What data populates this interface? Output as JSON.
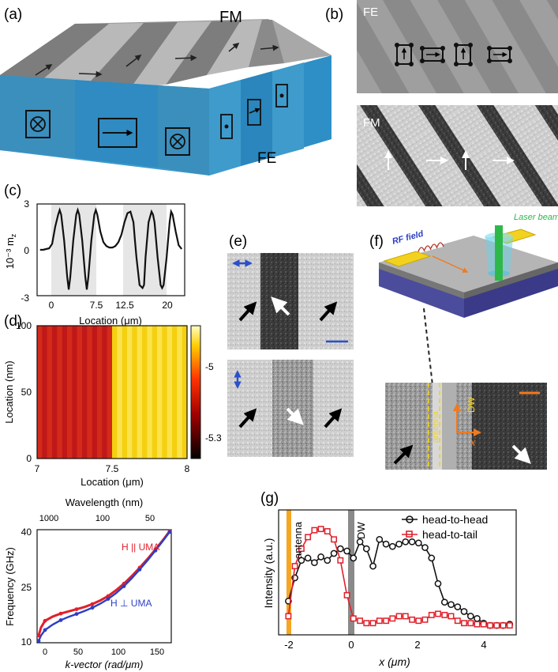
{
  "panels": {
    "a": {
      "letter": "(a)",
      "fm": "FM",
      "fe": "FE"
    },
    "b": {
      "letter": "(b)",
      "fe": "FE",
      "fm": "FM"
    },
    "c": {
      "letter": "(c)",
      "ylabel": "10⁻³ m",
      "ylabel_sub": "z",
      "xlabel": "Location (μm)",
      "yticks": [
        "3",
        "0",
        "-3"
      ],
      "xticks": [
        "0",
        "7.5",
        "12.5",
        "20"
      ]
    },
    "d": {
      "letter": "(d)",
      "ylabel": "Location (nm)",
      "xlabel": "Location (μm)",
      "yticks": [
        "100",
        "50",
        "0"
      ],
      "xticks": [
        "7",
        "7.5",
        "8"
      ],
      "cbar_ticks": [
        "-5",
        "-5.3"
      ]
    },
    "dispersion": {
      "top_label": "Wavelength (nm)",
      "top_ticks": [
        "1000",
        "100",
        "50"
      ],
      "ylabel": "Frequency (GHz)",
      "yticks": [
        "40",
        "25",
        "10"
      ],
      "xlabel": "k-vector (rad/μm)",
      "xticks": [
        "0",
        "50",
        "100",
        "150"
      ],
      "par_label": "H || UMA",
      "perp_label": "H ⊥ UMA",
      "par_color": "#e0202a",
      "perp_color": "#2a3fc4"
    },
    "e": {
      "letter": "(e)"
    },
    "f": {
      "letter": "(f)",
      "rf": "RF field",
      "laser": "Laser beam",
      "x": "x",
      "dw": "DW",
      "antenna": "antenna"
    },
    "g": {
      "letter": "(g)",
      "ylabel": "Intensity (a.u.)",
      "xlabel": "x (μm)",
      "xticks": [
        "-2",
        "0",
        "2",
        "4"
      ],
      "antenna": "antenna",
      "dw": "DW",
      "legend": [
        "head-to-head",
        "head-to-tail"
      ]
    }
  },
  "chart_data": [
    {
      "type": "line",
      "panel": "c",
      "xlabel": "Location (μm)",
      "ylabel": "10⁻³ m_z",
      "xlim": [
        -2.5,
        22
      ],
      "ylim": [
        -3,
        3
      ],
      "x": [
        -2.0,
        -1.5,
        -1.0,
        -0.5,
        0.0,
        0.5,
        1.0,
        1.25,
        1.5,
        2.0,
        2.5,
        2.75,
        3.0,
        3.5,
        4.0,
        4.25,
        4.5,
        5.0,
        5.5,
        5.75,
        6.0,
        6.5,
        7.0,
        7.25,
        7.5,
        8.0,
        8.5,
        9.0,
        9.5,
        10.0,
        10.5,
        11.0,
        11.5,
        12.0,
        12.5,
        13.0,
        13.5,
        13.75,
        14.0,
        14.5,
        15.0,
        15.25,
        15.5,
        16.0,
        16.5,
        16.75,
        17.0,
        17.5,
        18.0,
        18.25,
        18.5,
        19.0,
        19.5,
        19.75,
        20.0,
        20.5,
        21.0,
        21.5
      ],
      "series": [
        {
          "values": [
            0.0,
            0.0,
            0.05,
            0.1,
            0.4,
            1.5,
            2.3,
            2.6,
            2.3,
            0.6,
            -1.8,
            -2.6,
            -1.8,
            0.6,
            2.3,
            2.6,
            2.3,
            0.6,
            -1.8,
            -2.6,
            -1.8,
            0.6,
            2.3,
            2.6,
            2.3,
            1.2,
            0.5,
            0.25,
            0.15,
            0.15,
            0.25,
            0.5,
            1.0,
            1.8,
            2.4,
            2.5,
            1.8,
            0.6,
            -0.5,
            -2.3,
            -2.5,
            -2.3,
            -0.5,
            1.8,
            2.5,
            2.3,
            1.8,
            -0.5,
            -2.3,
            -2.5,
            -2.3,
            -0.5,
            1.8,
            2.5,
            2.3,
            1.2,
            0.3,
            0.05
          ]
        }
      ]
    },
    {
      "type": "heatmap",
      "panel": "d",
      "xlabel": "Location (μm)",
      "ylabel": "Location (nm)",
      "xlim": [
        7,
        8
      ],
      "ylim": [
        0,
        100
      ],
      "colorbar_ticks": [
        -5,
        -5.3
      ],
      "colormap": "hot"
    },
    {
      "type": "line",
      "panel": "dispersion",
      "xlabel": "k-vector (rad/μm)",
      "ylabel": "Frequency (GHz)",
      "xlim": [
        0,
        170
      ],
      "ylim": [
        10,
        41
      ],
      "x": [
        2,
        5,
        10,
        20,
        30,
        40,
        50,
        60,
        70,
        80,
        90,
        100,
        110,
        120,
        130,
        140,
        150,
        160,
        168
      ],
      "series": [
        {
          "name": "H || UMA",
          "color": "#e0202a",
          "values": [
            12.0,
            14.2,
            16.0,
            17.2,
            18.0,
            18.6,
            19.2,
            19.8,
            20.6,
            21.6,
            22.8,
            24.4,
            26.2,
            28.3,
            30.6,
            33.0,
            35.6,
            38.3,
            40.6
          ]
        },
        {
          "name": "H ⊥ UMA",
          "color": "#2a3fc4",
          "values": [
            10.5,
            12.0,
            13.5,
            15.0,
            16.2,
            17.1,
            17.9,
            18.7,
            19.6,
            20.7,
            22.0,
            23.6,
            25.5,
            27.7,
            30.1,
            32.6,
            35.3,
            38.1,
            40.4
          ]
        }
      ]
    },
    {
      "type": "line",
      "panel": "g",
      "xlabel": "x (μm)",
      "ylabel": "Intensity (a.u.)",
      "xlim": [
        -2.3,
        5.0
      ],
      "ylim": [
        0,
        1
      ],
      "legend": "top-right",
      "series": [
        {
          "name": "head-to-head",
          "color": "#111111",
          "x": [
            -2.0,
            -1.8,
            -1.6,
            -1.4,
            -1.2,
            -1.0,
            -0.8,
            -0.6,
            -0.4,
            -0.2,
            0.0,
            0.2,
            0.4,
            0.6,
            0.8,
            1.0,
            1.2,
            1.4,
            1.6,
            1.8,
            2.0,
            2.2,
            2.4,
            2.6,
            2.8,
            3.0,
            3.2,
            3.4,
            3.6,
            3.8,
            4.0,
            4.2,
            4.4,
            4.6,
            4.8
          ],
          "values": [
            0.25,
            0.45,
            0.6,
            0.62,
            0.58,
            0.63,
            0.6,
            0.66,
            0.7,
            0.68,
            0.62,
            0.76,
            0.7,
            0.55,
            0.78,
            0.74,
            0.72,
            0.74,
            0.76,
            0.76,
            0.75,
            0.71,
            0.62,
            0.4,
            0.24,
            0.22,
            0.2,
            0.16,
            0.12,
            0.1,
            0.06,
            0.04,
            0.04,
            0.04,
            0.05
          ]
        },
        {
          "name": "head-to-tail",
          "color": "#e0202a",
          "x": [
            -2.0,
            -1.8,
            -1.6,
            -1.4,
            -1.2,
            -1.0,
            -0.8,
            -0.6,
            -0.4,
            -0.2,
            0.0,
            0.2,
            0.4,
            0.6,
            0.8,
            1.0,
            1.2,
            1.4,
            1.6,
            1.8,
            2.0,
            2.2,
            2.4,
            2.6,
            2.8,
            3.0,
            3.2,
            3.4,
            3.6,
            3.8,
            4.0,
            4.2,
            4.4,
            4.6,
            4.8
          ],
          "values": [
            0.12,
            0.55,
            0.7,
            0.8,
            0.86,
            0.87,
            0.85,
            0.78,
            0.6,
            0.3,
            0.1,
            0.08,
            0.06,
            0.06,
            0.08,
            0.08,
            0.1,
            0.12,
            0.12,
            0.09,
            0.08,
            0.09,
            0.13,
            0.14,
            0.13,
            0.12,
            0.08,
            0.06,
            0.06,
            0.05,
            0.05,
            0.04,
            0.04,
            0.04,
            0.04
          ]
        }
      ]
    }
  ]
}
